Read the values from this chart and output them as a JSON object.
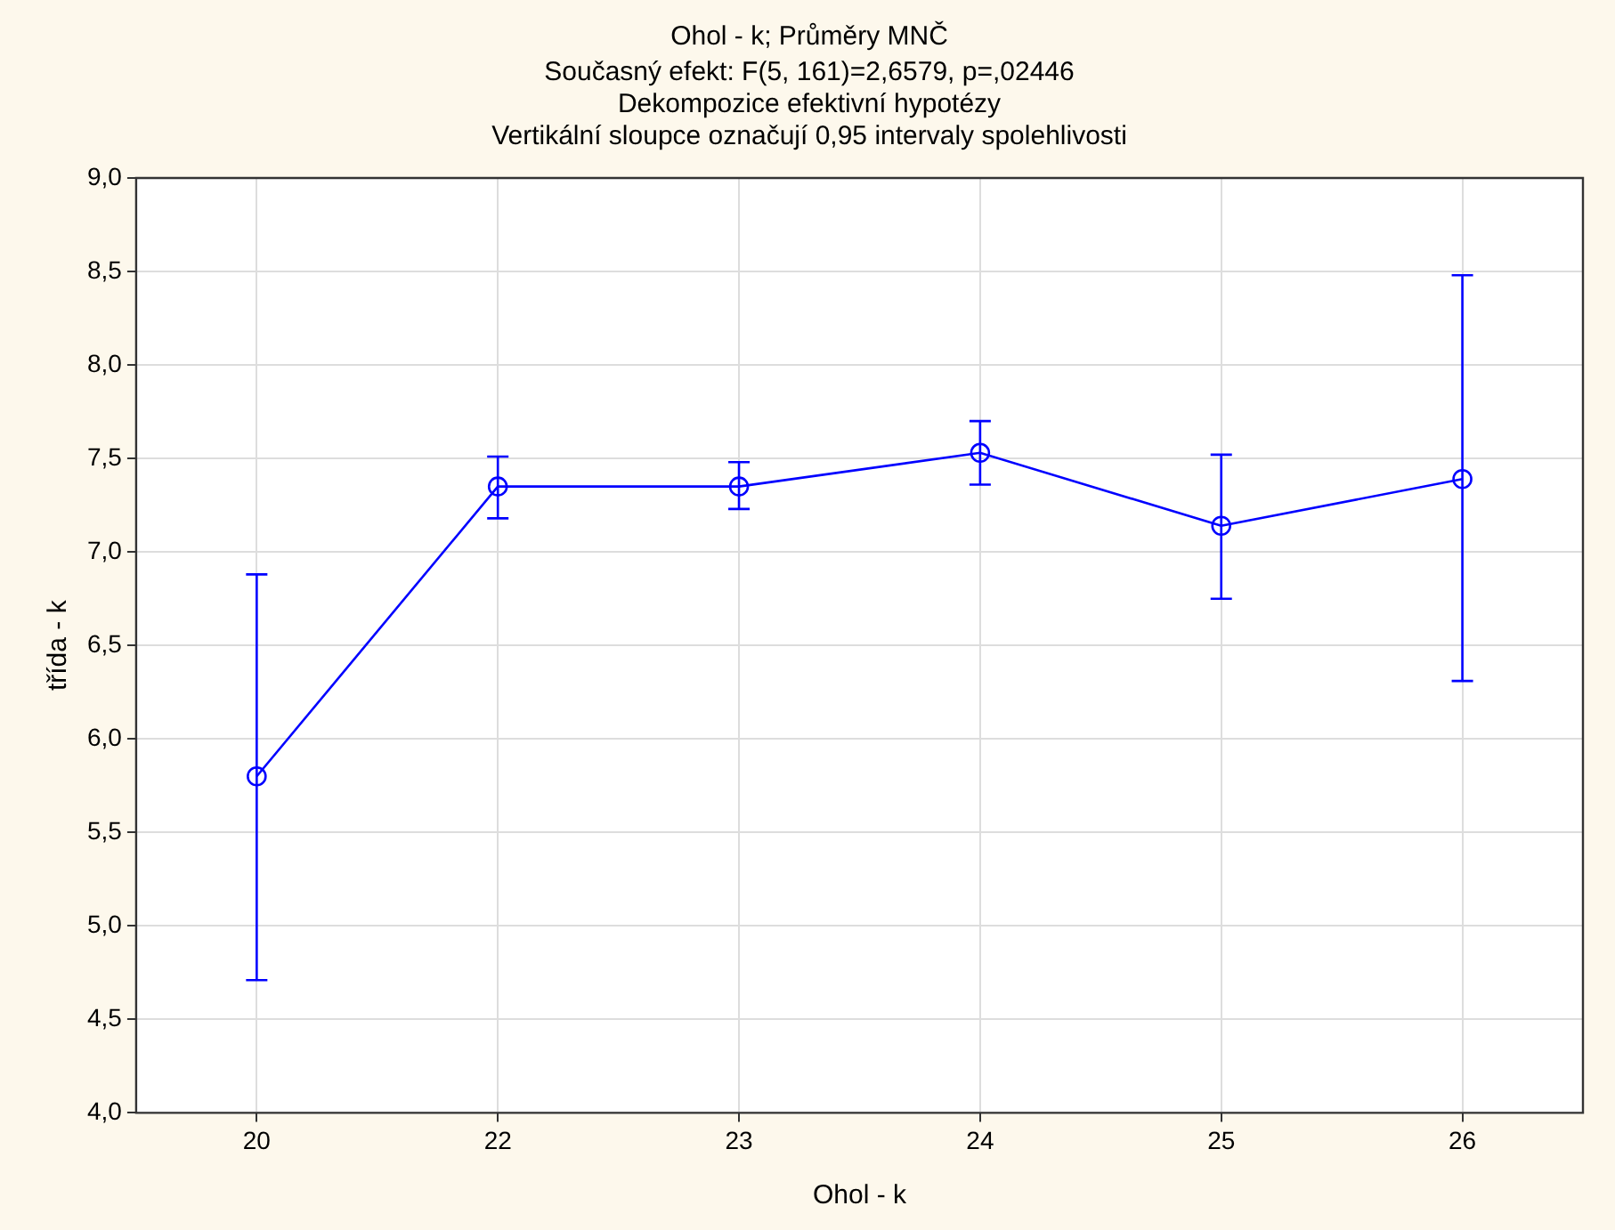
{
  "chart_data": {
    "type": "line",
    "title": "Ohol - k; Průměry MNČ",
    "subtitle": "Současný efekt: F(5, 161)=2,6579, p=,02446",
    "annotations": [
      "Dekompozice efektivní hypotézy",
      "Vertikální sloupce označují 0,95 intervaly spolehlivosti"
    ],
    "xlabel": "Ohol - k",
    "ylabel": "třída - k",
    "categories": [
      "20",
      "22",
      "23",
      "24",
      "25",
      "26"
    ],
    "series": [
      {
        "color": "#0000ff",
        "values": [
          5.8,
          7.35,
          7.35,
          7.53,
          7.14,
          7.39
        ],
        "errors": [
          [
            4.71,
            6.88
          ],
          [
            7.18,
            7.51
          ],
          [
            7.23,
            7.48
          ],
          [
            7.36,
            7.7
          ],
          [
            6.75,
            7.52
          ],
          [
            6.31,
            8.48
          ]
        ]
      }
    ],
    "ylim": [
      4,
      9
    ],
    "yticks": [
      {
        "value": 4,
        "label": "4,0"
      },
      {
        "value": 4.5,
        "label": "4,5"
      },
      {
        "value": 5,
        "label": "5,0"
      },
      {
        "value": 5.5,
        "label": "5,5"
      },
      {
        "value": 6,
        "label": "6,0"
      },
      {
        "value": 6.5,
        "label": "6,5"
      },
      {
        "value": 7,
        "label": "7,0"
      },
      {
        "value": 7.5,
        "label": "7,5"
      },
      {
        "value": 8,
        "label": "8,0"
      },
      {
        "value": 8.5,
        "label": "8,5"
      },
      {
        "value": 9,
        "label": "9,0"
      }
    ],
    "grid": true,
    "marker": "circle",
    "line_style": "solid"
  }
}
